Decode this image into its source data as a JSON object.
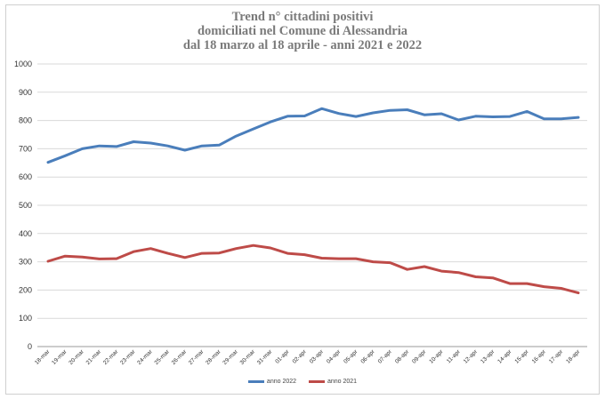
{
  "chart_data": {
    "type": "line",
    "title_lines": [
      "Trend n° cittadini positivi",
      "domiciliati nel Comune di Alessandria",
      "dal 18 marzo al 18 aprile - anni 2021 e 2022"
    ],
    "categories": [
      "18-mar",
      "19-mar",
      "20-mar",
      "21-mar",
      "22-mar",
      "23-mar",
      "24-mar",
      "25-mar",
      "26-mar",
      "27-mar",
      "28-mar",
      "29-mar",
      "30-mar",
      "31-mar",
      "01-apr",
      "02-apr",
      "03-apr",
      "04-apr",
      "05-apr",
      "06-apr",
      "07-apr",
      "08-apr",
      "09-apr",
      "10-apr",
      "11-apr",
      "12-apr",
      "13-apr",
      "14-apr",
      "15-apr",
      "16-apr",
      "17-apr",
      "18-apr"
    ],
    "series": [
      {
        "name": "anno 2022",
        "color": "#4a7ebb",
        "values": [
          652,
          675,
          700,
          710,
          708,
          725,
          720,
          710,
          695,
          710,
          713,
          745,
          770,
          795,
          815,
          816,
          842,
          825,
          814,
          827,
          836,
          838,
          820,
          824,
          802,
          815,
          813,
          814,
          832,
          806,
          806,
          811
        ]
      },
      {
        "name": "anno 2021",
        "color": "#be4b48",
        "values": [
          302,
          320,
          317,
          310,
          311,
          336,
          347,
          330,
          315,
          330,
          331,
          347,
          358,
          349,
          330,
          325,
          313,
          311,
          311,
          300,
          297,
          273,
          283,
          267,
          262,
          247,
          243,
          223,
          223,
          212,
          206,
          190
        ]
      }
    ],
    "ylim": [
      0,
      1000
    ],
    "yticks": [
      0,
      100,
      200,
      300,
      400,
      500,
      600,
      700,
      800,
      900,
      1000
    ],
    "grid": true,
    "legend_position": "bottom"
  }
}
